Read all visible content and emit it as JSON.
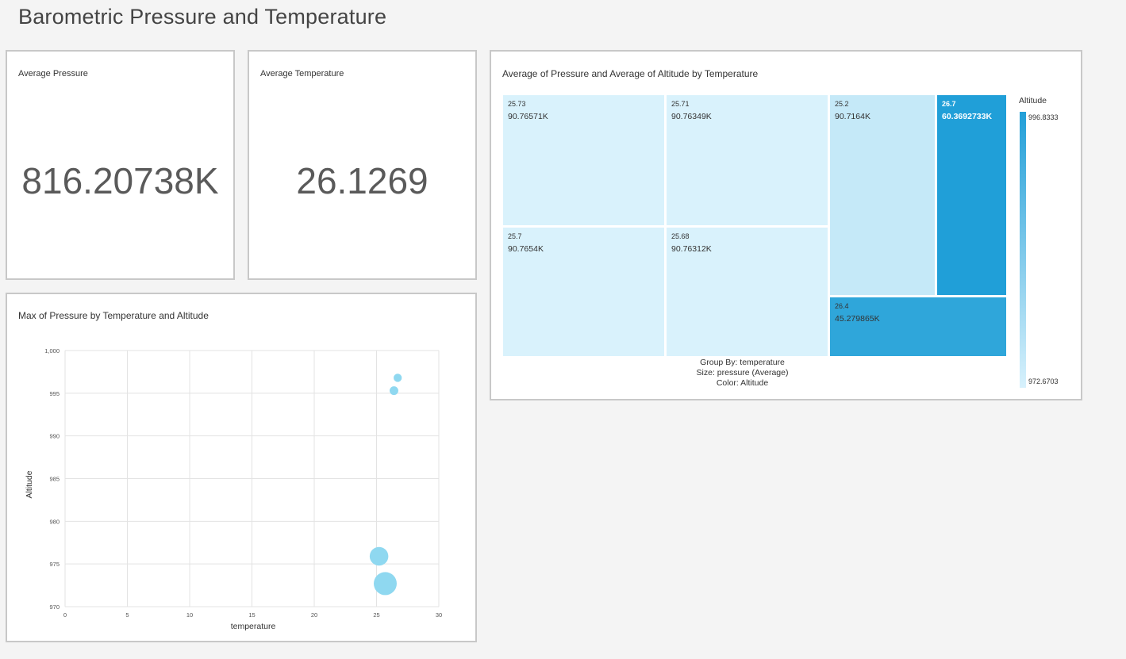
{
  "page": {
    "title": "Barometric Pressure and Temperature"
  },
  "cards": [
    {
      "title": "Average Pressure",
      "value": "816.20738K"
    },
    {
      "title": "Average Temperature",
      "value": "26.1269"
    }
  ],
  "colors": {
    "bubble": "#8fd8f0",
    "treemap_light": "#d9f2fc",
    "treemap_lighter": "#c5e9f8",
    "treemap_mid": "#2fa6da",
    "treemap_dark": "#209fd8",
    "grid": "#e3e3e3"
  },
  "chart_data": [
    {
      "type": "scatter",
      "title": "Max of Pressure by Temperature and Altitude",
      "xlabel": "temperature",
      "ylabel": "Altitude",
      "xlim": [
        0,
        30
      ],
      "ylim": [
        970,
        1000
      ],
      "xticks": [
        0,
        5,
        10,
        15,
        20,
        25,
        30
      ],
      "yticks": [
        970,
        975,
        980,
        985,
        990,
        995,
        "1,000"
      ],
      "grid": true,
      "points": [
        {
          "x": 26.7,
          "y": 996.8,
          "size": 0.15
        },
        {
          "x": 26.4,
          "y": 995.3,
          "size": 0.18
        },
        {
          "x": 25.2,
          "y": 975.9,
          "size": 0.75
        },
        {
          "x": 25.7,
          "y": 972.7,
          "size": 1.0
        }
      ]
    },
    {
      "type": "treemap",
      "title": "Average of Pressure and Average of Altitude by Temperature",
      "cells": [
        {
          "category": "25.73",
          "value": "90.76571K",
          "shade": "light"
        },
        {
          "category": "25.71",
          "value": "90.76349K",
          "shade": "light"
        },
        {
          "category": "25.2",
          "value": "90.7164K",
          "shade": "lighter"
        },
        {
          "category": "26.7",
          "value": "60.3692733K",
          "shade": "dark"
        },
        {
          "category": "25.7",
          "value": "90.7654K",
          "shade": "light"
        },
        {
          "category": "25.68",
          "value": "90.76312K",
          "shade": "light"
        },
        {
          "category": "26.4",
          "value": "45.279865K",
          "shade": "mid"
        }
      ],
      "footer": [
        "Group By: temperature",
        "Size: pressure (Average)",
        "Color: Altitude"
      ],
      "legend": {
        "title": "Altitude",
        "max": "996.8333",
        "min": "972.6703",
        "placement": "right"
      }
    }
  ]
}
